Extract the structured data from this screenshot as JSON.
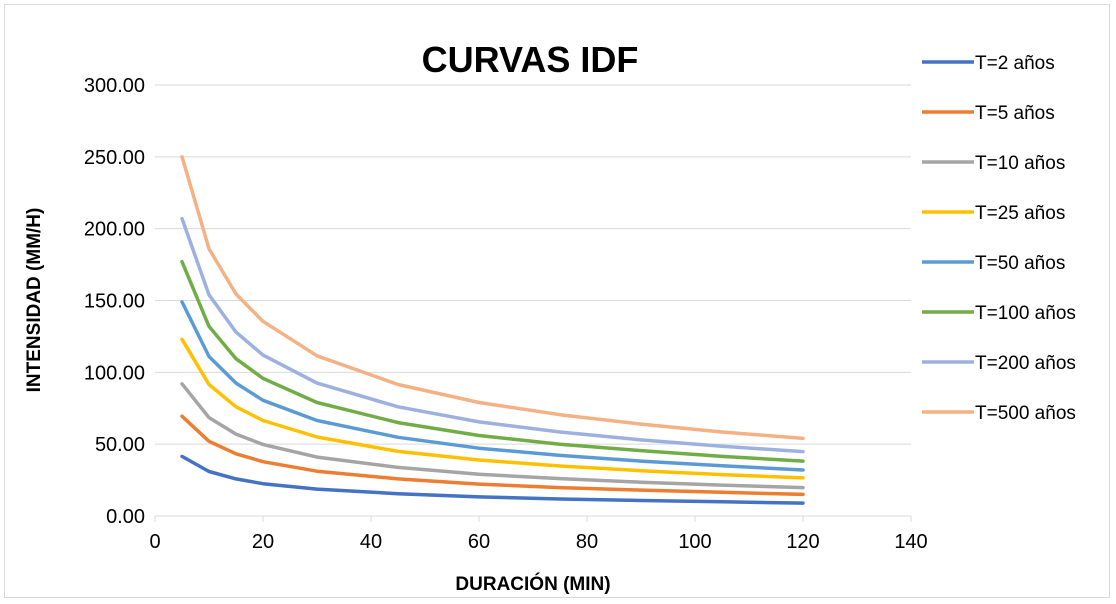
{
  "chart_data": {
    "type": "line",
    "title": "CURVAS IDF",
    "xlabel": "DURACIÓN (MIN)",
    "ylabel": "INTENSIDAD (MM/H)",
    "xlim": [
      0,
      140
    ],
    "ylim": [
      0,
      300
    ],
    "x_ticks": [
      "0",
      "20",
      "40",
      "60",
      "80",
      "100",
      "120",
      "140"
    ],
    "y_ticks": [
      "0.00",
      "50.00",
      "100.00",
      "150.00",
      "200.00",
      "250.00",
      "300.00"
    ],
    "grid": "horizontal",
    "legend_position": "right",
    "x": [
      5,
      10,
      15,
      20,
      30,
      45,
      60,
      75,
      90,
      105,
      120
    ],
    "series": [
      {
        "name": "T=2 años",
        "color": "#4472C4",
        "values": [
          41.5,
          31.0,
          25.8,
          22.5,
          18.7,
          15.5,
          13.3,
          11.8,
          10.8,
          9.9,
          9.0
        ]
      },
      {
        "name": "T=5 años",
        "color": "#ED7D31",
        "values": [
          69.5,
          52.0,
          43.3,
          37.8,
          31.2,
          25.8,
          22.2,
          19.8,
          18.0,
          16.5,
          15.0
        ]
      },
      {
        "name": "T=10 años",
        "color": "#A5A5A5",
        "values": [
          92.0,
          68.5,
          57.0,
          49.8,
          41.0,
          33.8,
          29.0,
          26.0,
          23.5,
          21.5,
          19.8
        ]
      },
      {
        "name": "T=25 años",
        "color": "#FFC000",
        "values": [
          123.0,
          91.5,
          76.0,
          66.5,
          55.0,
          45.0,
          39.0,
          34.8,
          31.5,
          28.8,
          26.5
        ]
      },
      {
        "name": "T=50 años",
        "color": "#5B9BD5",
        "values": [
          149.0,
          111.0,
          92.5,
          80.5,
          66.5,
          54.8,
          47.2,
          42.2,
          38.2,
          35.0,
          32.0
        ]
      },
      {
        "name": "T=100 años",
        "color": "#70AD47",
        "values": [
          177.0,
          132.0,
          109.5,
          95.8,
          79.0,
          65.0,
          56.0,
          50.0,
          45.5,
          41.5,
          38.2
        ]
      },
      {
        "name": "T=200 años",
        "color": "#9DB1E0",
        "values": [
          207.0,
          154.0,
          128.0,
          112.0,
          92.5,
          76.0,
          65.5,
          58.5,
          53.0,
          48.5,
          44.8
        ]
      },
      {
        "name": "T=500 años",
        "color": "#F4B183",
        "values": [
          250.0,
          186.0,
          154.5,
          135.5,
          111.5,
          91.5,
          79.0,
          70.5,
          64.0,
          58.5,
          54.0
        ]
      }
    ]
  }
}
